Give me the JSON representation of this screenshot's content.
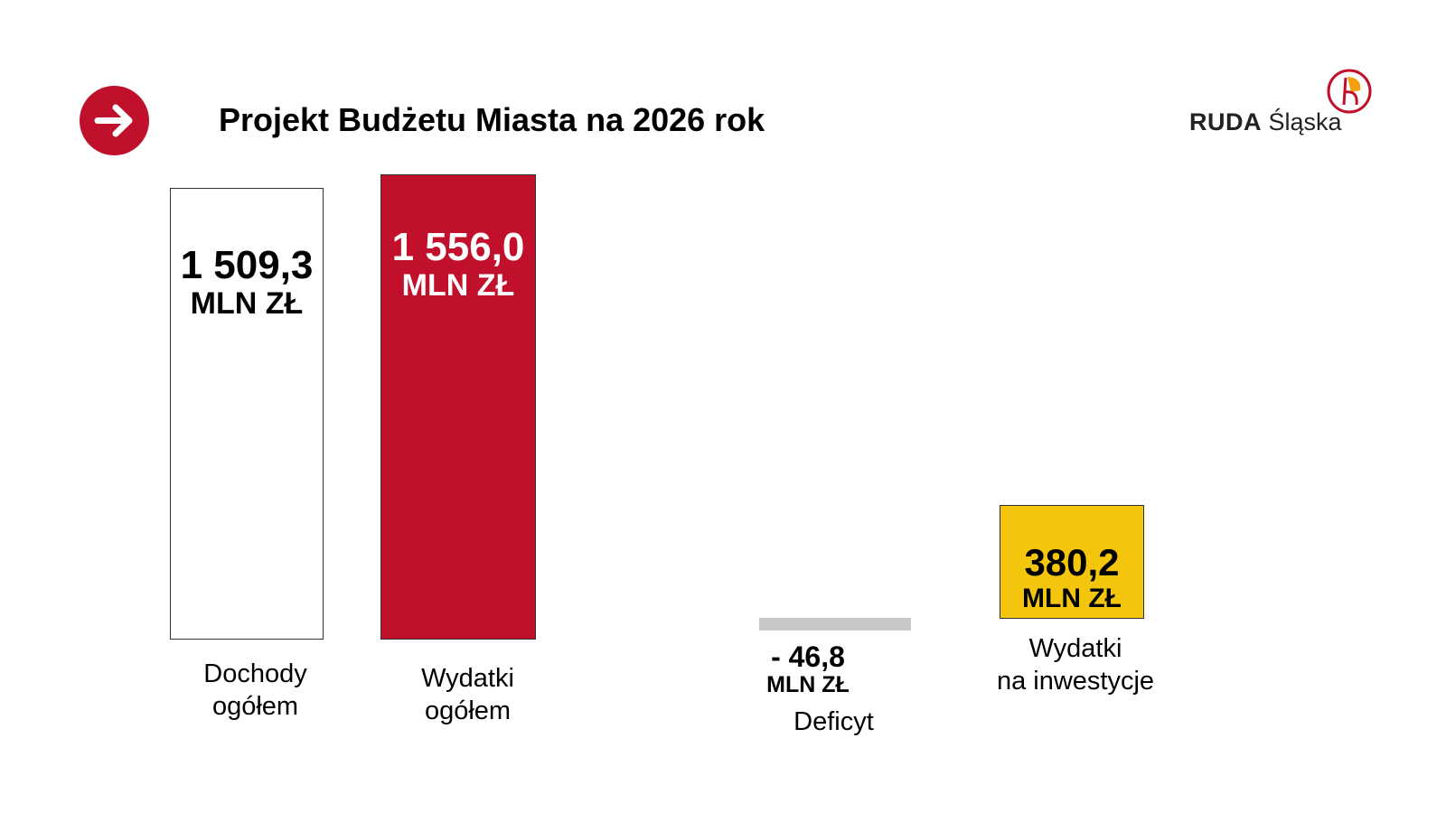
{
  "title": "Projekt Budżetu Miasta na 2026 rok",
  "logo": {
    "bold": "RUDA",
    "light": "Śląska"
  },
  "icons": {
    "header": "arrow-right-icon",
    "logo": "ruda-slaska-logo-icon"
  },
  "colors": {
    "accent": "#c1102c",
    "revenue": "#ffffff",
    "expenses": "#c1102c",
    "deficit": "#c8c8c8",
    "investment": "#f3c50c"
  },
  "chart_data": {
    "type": "bar",
    "unit": "MLN ZŁ",
    "categories": [
      "Dochody ogółem",
      "Wydatki ogółem",
      "Deficyt",
      "Wydatki na inwestycje"
    ],
    "values": [
      1509.3,
      1556.0,
      -46.8,
      380.2
    ],
    "value_labels": [
      "1 509,3",
      "1 556,0",
      "- 46,8",
      "380,2"
    ],
    "label_lines": [
      [
        "Dochody",
        "ogółem"
      ],
      [
        "Wydatki",
        "ogółem"
      ],
      [
        "Deficyt"
      ],
      [
        "Wydatki",
        "na inwestycje"
      ]
    ],
    "grid": false,
    "legend": "none"
  }
}
